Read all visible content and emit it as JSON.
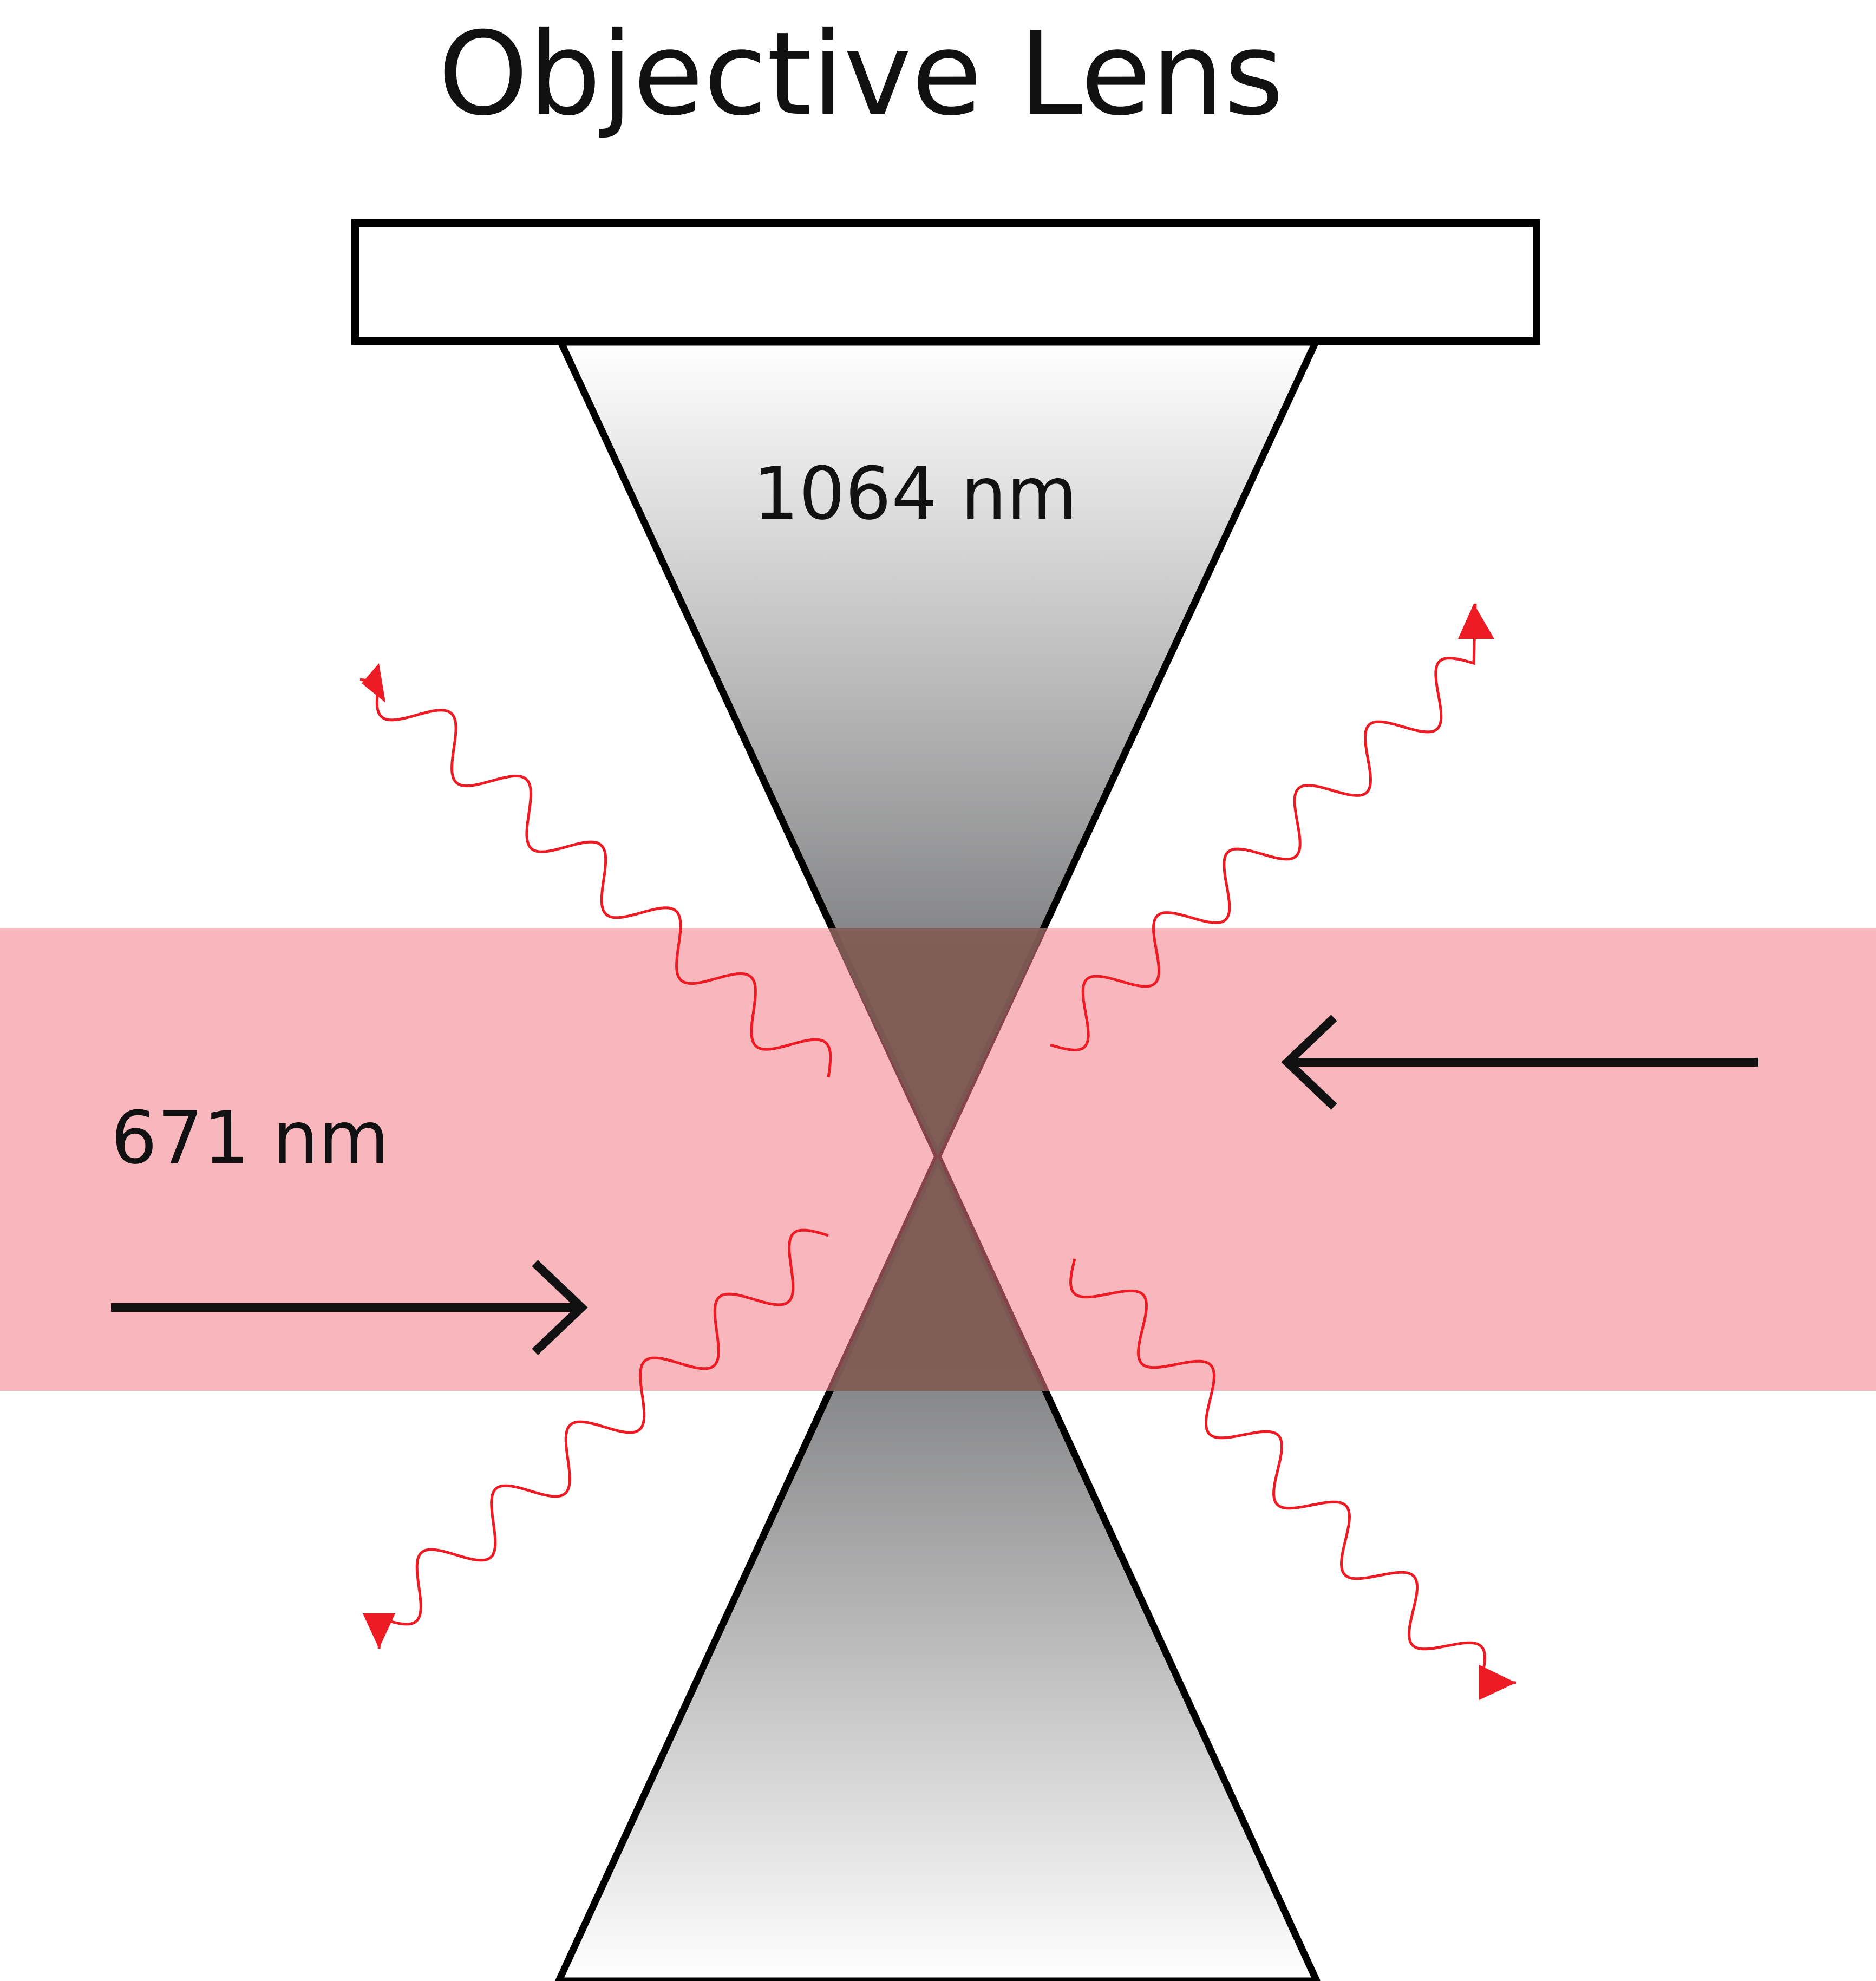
{
  "title": "Objective Lens",
  "beam_1064": {
    "label": "1064 nm",
    "color_light": "#ffffff",
    "color_dark": "#58595b"
  },
  "beam_671": {
    "label": "671 nm",
    "color": "#f5a3a8"
  },
  "overlap_color": "#7a5a52",
  "emission_color": "#ed1c24",
  "arrow_color": "#111111"
}
